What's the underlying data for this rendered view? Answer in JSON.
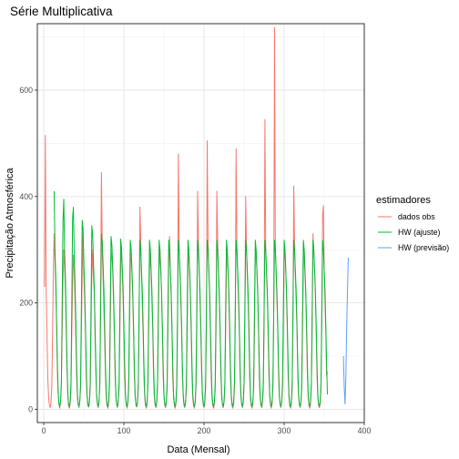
{
  "chart_data": {
    "type": "line",
    "title": "Série Multiplicativa",
    "xlabel": "Data (Mensal)",
    "ylabel": "Precipitação Atmosférica",
    "xlim": [
      -8,
      400
    ],
    "ylim": [
      -25,
      725
    ],
    "x_ticks": [
      0,
      100,
      200,
      300,
      400
    ],
    "y_ticks": [
      0,
      200,
      400,
      600
    ],
    "grid": true,
    "legend": {
      "title": "estimadores",
      "position": "right",
      "entries": [
        {
          "label": "dados obs",
          "color": "#F8766D"
        },
        {
          "label": "HW (ajuste)",
          "color": "#00BA38"
        },
        {
          "label": "HW (previsão)",
          "color": "#619CFF"
        }
      ]
    },
    "series": [
      {
        "name": "dados obs",
        "color": "#F8766D",
        "x_start": 1,
        "values": [
          230,
          515,
          220,
          150,
          60,
          25,
          8,
          3,
          12,
          40,
          140,
          260,
          330,
          280,
          230,
          160,
          70,
          30,
          10,
          2,
          14,
          45,
          150,
          240,
          300,
          270,
          220,
          150,
          75,
          28,
          6,
          2,
          10,
          35,
          145,
          235,
          290,
          260,
          200,
          140,
          65,
          22,
          9,
          3,
          15,
          40,
          150,
          255,
          330,
          250,
          210,
          150,
          60,
          25,
          7,
          4,
          12,
          38,
          150,
          250,
          300,
          250,
          220,
          140,
          68,
          25,
          8,
          3,
          14,
          50,
          230,
          445,
          300,
          250,
          190,
          130,
          62,
          20,
          6,
          2,
          10,
          40,
          150,
          270,
          300,
          265,
          205,
          145,
          66,
          24,
          8,
          3,
          15,
          38,
          145,
          270,
          305,
          255,
          210,
          130,
          60,
          22,
          7,
          2,
          11,
          36,
          150,
          265,
          300,
          260,
          215,
          150,
          64,
          26,
          8,
          4,
          14,
          42,
          160,
          380,
          320,
          250,
          190,
          140,
          60,
          22,
          6,
          2,
          10,
          44,
          150,
          260,
          295,
          260,
          200,
          150,
          60,
          22,
          7,
          3,
          12,
          40,
          155,
          265,
          300,
          270,
          220,
          145,
          62,
          24,
          8,
          3,
          12,
          38,
          150,
          280,
          325,
          260,
          210,
          145,
          58,
          22,
          6,
          2,
          10,
          40,
          160,
          480,
          300,
          250,
          210,
          150,
          62,
          24,
          7,
          3,
          13,
          38,
          145,
          265,
          300,
          260,
          215,
          140,
          60,
          20,
          6,
          2,
          12,
          42,
          150,
          410,
          320,
          255,
          205,
          145,
          66,
          26,
          8,
          3,
          14,
          40,
          160,
          505,
          320,
          260,
          210,
          140,
          60,
          22,
          7,
          2,
          11,
          38,
          150,
          410,
          320,
          255,
          210,
          150,
          64,
          24,
          8,
          3,
          13,
          40,
          150,
          265,
          300,
          260,
          210,
          140,
          60,
          22,
          6,
          2,
          10,
          40,
          160,
          490,
          310,
          255,
          200,
          150,
          62,
          24,
          8,
          3,
          14,
          40,
          155,
          400,
          305,
          250,
          200,
          140,
          60,
          20,
          6,
          2,
          12,
          40,
          150,
          275,
          300,
          260,
          215,
          145,
          60,
          22,
          8,
          3,
          12,
          38,
          150,
          545,
          300,
          255,
          210,
          140,
          62,
          24,
          7,
          2,
          11,
          42,
          180,
          718,
          310,
          255,
          205,
          145,
          64,
          24,
          8,
          3,
          13,
          40,
          150,
          280,
          300,
          265,
          210,
          140,
          60,
          22,
          6,
          2,
          10,
          38,
          150,
          420,
          310,
          250,
          200,
          150,
          62,
          24,
          8,
          3,
          14,
          40,
          150,
          265,
          300,
          255,
          215,
          140,
          60,
          22,
          6,
          2,
          12,
          44,
          160,
          330,
          300,
          260,
          210,
          145,
          60,
          22,
          7,
          3,
          10,
          38,
          160,
          365,
          383,
          260,
          200,
          145,
          62,
          70
        ]
      },
      {
        "name": "HW (ajuste)",
        "color": "#00BA38",
        "x_start": 13,
        "values": [
          410,
          300,
          250,
          170,
          90,
          30,
          10,
          5,
          15,
          50,
          200,
          355,
          395,
          300,
          250,
          170,
          90,
          30,
          10,
          5,
          15,
          50,
          200,
          360,
          380,
          290,
          240,
          170,
          90,
          30,
          10,
          5,
          15,
          50,
          200,
          355,
          340,
          280,
          230,
          160,
          85,
          28,
          10,
          5,
          15,
          50,
          190,
          345,
          330,
          280,
          230,
          160,
          85,
          28,
          10,
          5,
          15,
          50,
          190,
          330,
          315,
          275,
          230,
          160,
          85,
          28,
          10,
          5,
          15,
          50,
          190,
          325,
          310,
          270,
          225,
          160,
          85,
          28,
          10,
          5,
          15,
          50,
          190,
          320,
          305,
          265,
          225,
          160,
          85,
          28,
          10,
          5,
          15,
          50,
          190,
          318,
          302,
          265,
          225,
          160,
          85,
          28,
          10,
          5,
          15,
          50,
          190,
          318,
          300,
          262,
          222,
          158,
          84,
          28,
          10,
          5,
          15,
          50,
          190,
          318,
          300,
          262,
          222,
          158,
          84,
          28,
          10,
          5,
          15,
          50,
          190,
          318,
          300,
          262,
          222,
          158,
          84,
          28,
          10,
          5,
          15,
          50,
          190,
          318,
          300,
          262,
          222,
          158,
          84,
          28,
          10,
          5,
          15,
          50,
          190,
          318,
          300,
          262,
          222,
          158,
          84,
          28,
          10,
          5,
          15,
          50,
          190,
          318,
          300,
          262,
          222,
          158,
          84,
          28,
          10,
          5,
          15,
          50,
          190,
          318,
          300,
          262,
          222,
          158,
          84,
          28,
          10,
          5,
          15,
          50,
          190,
          318,
          300,
          262,
          222,
          158,
          84,
          28,
          10,
          5,
          15,
          50,
          190,
          318,
          300,
          262,
          222,
          158,
          84,
          28,
          10,
          5,
          15,
          50,
          190,
          318,
          300,
          262,
          222,
          158,
          84,
          28,
          10,
          5,
          15,
          50,
          190,
          318,
          300,
          262,
          222,
          158,
          84,
          28,
          10,
          5,
          15,
          50,
          190,
          318,
          300,
          262,
          222,
          158,
          84,
          28,
          10,
          5,
          15,
          50,
          190,
          318,
          300,
          262,
          222,
          158,
          84,
          28,
          10,
          5,
          15,
          50,
          190,
          318,
          300,
          262,
          222,
          158,
          84,
          28,
          10,
          5,
          15,
          50,
          190,
          318,
          300,
          262,
          222,
          158,
          84,
          28,
          10,
          5,
          15,
          50,
          190,
          318,
          300,
          262,
          222,
          158,
          84,
          28,
          10,
          5,
          15,
          50,
          190,
          318,
          300,
          262,
          222,
          158,
          84,
          28,
          10,
          5,
          15,
          50,
          190,
          318,
          300,
          262,
          222,
          158,
          84,
          28,
          10,
          5,
          15,
          50,
          190,
          318,
          300,
          262,
          222,
          158,
          84,
          28,
          10,
          5,
          15,
          50,
          190,
          318,
          300,
          262,
          222,
          158,
          84,
          28
        ]
      },
      {
        "name": "HW (previsão)",
        "color": "#619CFF",
        "x_start": 374,
        "values": [
          100,
          40,
          10,
          60,
          150,
          220,
          285
        ]
      }
    ]
  }
}
